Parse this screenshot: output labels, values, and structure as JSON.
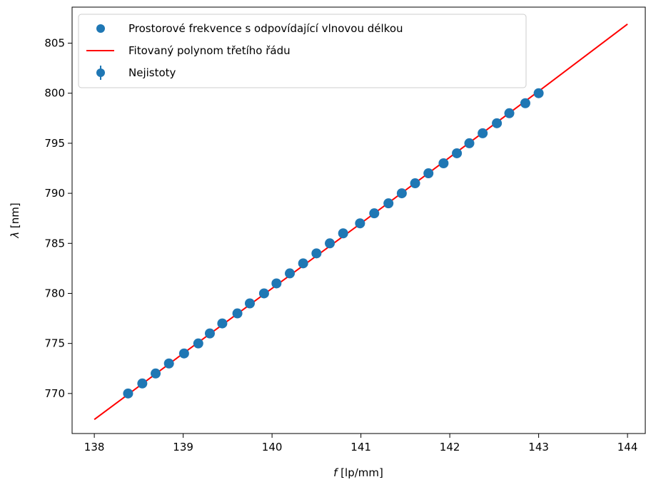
{
  "chart_data": {
    "type": "scatter",
    "xlabel_italic": "f",
    "xlabel_rest": " [lp/mm]",
    "ylabel_italic": "λ",
    "ylabel_rest": " [nm]",
    "xlim": [
      137.75,
      144.2
    ],
    "ylim": [
      766.0,
      808.6
    ],
    "xticks": [
      138,
      139,
      140,
      141,
      142,
      143,
      144
    ],
    "yticks": [
      770,
      775,
      780,
      785,
      790,
      795,
      800,
      805
    ],
    "legend_position": "top-left",
    "colors": {
      "points": "#1f77b4",
      "fit": "#ff0000"
    },
    "series": [
      {
        "name": "Prostorové frekvence s odpovídající vlnovou délkou",
        "kind": "scatter",
        "x": [
          138.38,
          138.54,
          138.69,
          138.84,
          139.01,
          139.17,
          139.3,
          139.44,
          139.61,
          139.75,
          139.91,
          140.05,
          140.2,
          140.35,
          140.5,
          140.65,
          140.8,
          140.99,
          141.15,
          141.31,
          141.46,
          141.61,
          141.76,
          141.93,
          142.08,
          142.22,
          142.37,
          142.53,
          142.67,
          142.85,
          143.0
        ],
        "y": [
          770,
          771,
          772,
          773,
          774,
          775,
          776,
          777,
          778,
          779,
          780,
          781,
          782,
          783,
          784,
          785,
          786,
          787,
          788,
          789,
          790,
          791,
          792,
          793,
          794,
          795,
          796,
          797,
          798,
          799,
          800
        ]
      },
      {
        "name": "Fitovaný polynom třetího řádu",
        "kind": "line",
        "x": [
          138.0,
          139.0,
          140.0,
          141.0,
          142.0,
          143.0,
          144.0
        ],
        "y": [
          767.4,
          774.0,
          780.5,
          787.0,
          793.6,
          800.2,
          806.9
        ]
      },
      {
        "name": "Nejistoty",
        "kind": "errorbar"
      }
    ]
  }
}
